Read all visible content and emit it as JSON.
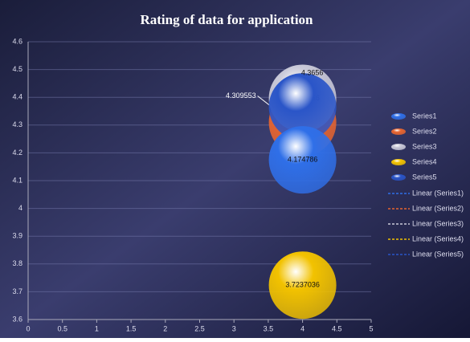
{
  "chart_data": {
    "type": "bubble",
    "title": "Rating of data for application",
    "xlim": [
      0,
      5
    ],
    "xticks": [
      0,
      0.5,
      1,
      1.5,
      2,
      2.5,
      3,
      3.5,
      4,
      4.5,
      5
    ],
    "ylim": [
      3.6,
      4.6
    ],
    "yticks": [
      3.6,
      3.7,
      3.8,
      3.9,
      4,
      4.1,
      4.2,
      4.3,
      4.4,
      4.5,
      4.6
    ],
    "grid": true,
    "legend": "right",
    "series": [
      {
        "name": "Series1",
        "color": "#2f6fe8",
        "x": [
          4
        ],
        "values": [
          4.174786
        ],
        "sizes": [
          1
        ],
        "trendline": "Linear (Series1)"
      },
      {
        "name": "Series2",
        "color": "#e8652f",
        "x": [
          4
        ],
        "values": [
          4.309553
        ],
        "sizes": [
          1
        ],
        "trendline": "Linear (Series2)"
      },
      {
        "name": "Series3",
        "color": "#c9c9d8",
        "x": [
          4
        ],
        "values": [
          4.3963156
        ],
        "sizes": [
          1
        ],
        "trendline": "Linear (Series3)"
      },
      {
        "name": "Series4",
        "color": "#f2c200",
        "x": [
          4
        ],
        "values": [
          3.7237036
        ],
        "sizes": [
          1
        ],
        "trendline": "Linear (Series4)"
      },
      {
        "name": "Series5",
        "color": "#2a55c8",
        "x": [
          4
        ],
        "values": [
          4.3656
        ],
        "sizes": [
          1
        ],
        "trendline": "Linear (Series5)"
      }
    ]
  }
}
